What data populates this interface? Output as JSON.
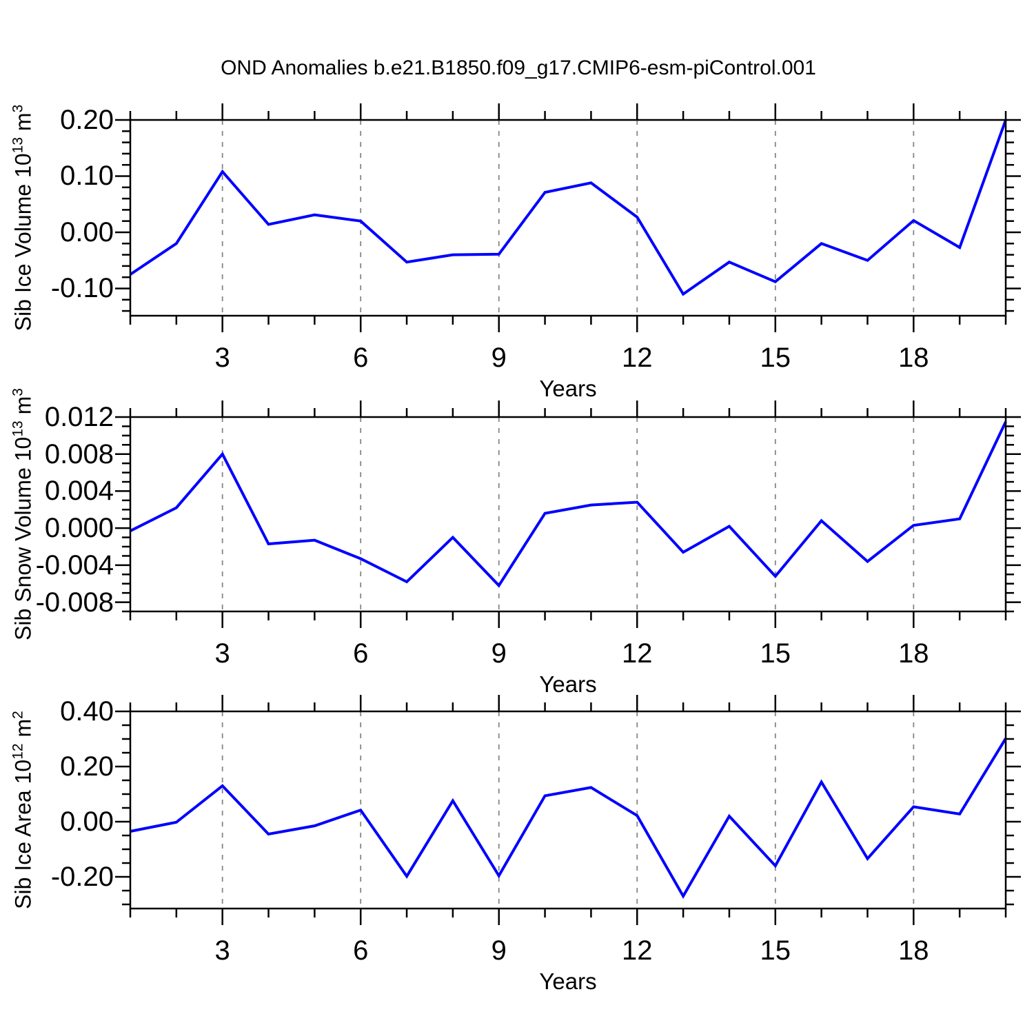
{
  "title": "OND Anomalies b.e21.B1850.f09_g17.CMIP6-esm-piControl.001",
  "line_color": "#0000ff",
  "grid_color": "#858585",
  "frame_color": "#000000",
  "chart_data": [
    {
      "type": "line",
      "title": "OND Anomalies b.e21.B1850.f09_g17.CMIP6-esm-piControl.001",
      "xlabel": "Years",
      "ylabel": "Sib Ice Volume 10^13 m^3",
      "ylabel_parts": [
        "Sib Ice Volume 10",
        "13",
        " m",
        "3"
      ],
      "x": [
        1,
        2,
        3,
        4,
        5,
        6,
        7,
        8,
        9,
        10,
        11,
        12,
        13,
        14,
        15,
        16,
        17,
        18,
        19,
        20
      ],
      "values": [
        -0.075,
        -0.02,
        0.108,
        0.014,
        0.031,
        0.02,
        -0.053,
        -0.04,
        -0.039,
        0.071,
        0.088,
        0.027,
        -0.11,
        -0.053,
        -0.088,
        -0.02,
        -0.05,
        0.021,
        -0.027,
        0.2
      ],
      "xlim": [
        1,
        20
      ],
      "ylim": [
        -0.1485,
        0.2
      ],
      "xticks_major": [
        3,
        6,
        9,
        12,
        15,
        18
      ],
      "xtick_labels": [
        "3",
        "6",
        "9",
        "12",
        "15",
        "18"
      ],
      "xtick_minor_step": 1,
      "yticks_major": [
        0.2,
        0.1,
        0.0,
        -0.1
      ],
      "ytick_labels": [
        "0.20",
        "0.10",
        "0.00",
        "-0.10"
      ],
      "ytick_minor_step": 0.02,
      "grid": "vertical dashed at major x ticks",
      "legend": "none"
    },
    {
      "type": "line",
      "title": "OND Anomalies b.e21.B1850.f09_g17.CMIP6-esm-piControl.001",
      "xlabel": "Years",
      "ylabel": "Sib Snow Volume 10^13 m^3",
      "ylabel_parts": [
        "Sib Snow Volume 10",
        "13",
        " m",
        "3"
      ],
      "x": [
        1,
        2,
        3,
        4,
        5,
        6,
        7,
        8,
        9,
        10,
        11,
        12,
        13,
        14,
        15,
        16,
        17,
        18,
        19,
        20
      ],
      "values": [
        -0.0003,
        0.0022,
        0.008,
        -0.0017,
        -0.0013,
        -0.0033,
        -0.0058,
        -0.001,
        -0.0062,
        0.0016,
        0.0025,
        0.0028,
        -0.0026,
        0.0002,
        -0.0052,
        0.0008,
        -0.0036,
        0.0003,
        0.001,
        0.0115
      ],
      "xlim": [
        1,
        20
      ],
      "ylim": [
        -0.009,
        0.012
      ],
      "xticks_major": [
        3,
        6,
        9,
        12,
        15,
        18
      ],
      "xtick_labels": [
        "3",
        "6",
        "9",
        "12",
        "15",
        "18"
      ],
      "xtick_minor_step": 1,
      "yticks_major": [
        0.012,
        0.008,
        0.004,
        0.0,
        -0.004,
        -0.008
      ],
      "ytick_labels": [
        "0.012",
        "0.008",
        "0.004",
        "0.000",
        "-0.004",
        "-0.008"
      ],
      "ytick_minor_step": 0.001,
      "grid": "vertical dashed at major x ticks",
      "legend": "none"
    },
    {
      "type": "line",
      "title": "OND Anomalies b.e21.B1850.f09_g17.CMIP6-esm-piControl.001",
      "xlabel": "Years",
      "ylabel": "Sib Ice Area 10^12 m^2",
      "ylabel_parts": [
        "Sib Ice Area 10",
        "12",
        " m",
        "2"
      ],
      "x": [
        1,
        2,
        3,
        4,
        5,
        6,
        7,
        8,
        9,
        10,
        11,
        12,
        13,
        14,
        15,
        16,
        17,
        18,
        19,
        20
      ],
      "values": [
        -0.035,
        -0.002,
        0.13,
        -0.045,
        -0.015,
        0.042,
        -0.198,
        0.076,
        -0.196,
        0.094,
        0.124,
        0.022,
        -0.27,
        0.02,
        -0.16,
        0.144,
        -0.134,
        0.054,
        0.028,
        0.302
      ],
      "xlim": [
        1,
        20
      ],
      "ylim": [
        -0.315,
        0.4
      ],
      "xticks_major": [
        3,
        6,
        9,
        12,
        15,
        18
      ],
      "xtick_labels": [
        "3",
        "6",
        "9",
        "12",
        "15",
        "18"
      ],
      "xtick_minor_step": 1,
      "yticks_major": [
        0.4,
        0.2,
        0.0,
        -0.2
      ],
      "ytick_labels": [
        "0.40",
        "0.20",
        "0.00",
        "-0.20"
      ],
      "ytick_minor_step": 0.05,
      "grid": "vertical dashed at major x ticks",
      "legend": "none"
    }
  ]
}
